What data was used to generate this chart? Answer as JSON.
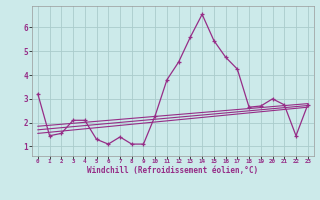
{
  "x": [
    0,
    1,
    2,
    3,
    4,
    5,
    6,
    7,
    8,
    9,
    10,
    11,
    12,
    13,
    14,
    15,
    16,
    17,
    18,
    19,
    20,
    21,
    22,
    23
  ],
  "line1": [
    3.2,
    1.45,
    1.55,
    2.1,
    2.1,
    1.3,
    1.1,
    1.4,
    1.1,
    1.1,
    2.3,
    3.8,
    4.55,
    5.6,
    6.55,
    5.45,
    4.75,
    4.25,
    2.65,
    2.7,
    3.0,
    2.75,
    1.45,
    2.75
  ],
  "regression_lines": [
    {
      "start_x": 0,
      "start_y": 1.55,
      "end_x": 23,
      "end_y": 2.65
    },
    {
      "start_x": 0,
      "start_y": 1.7,
      "end_x": 23,
      "end_y": 2.72
    },
    {
      "start_x": 0,
      "start_y": 1.85,
      "end_x": 23,
      "end_y": 2.8
    }
  ],
  "color": "#962d87",
  "background_color": "#cceaea",
  "grid_color": "#aacccc",
  "xlabel": "Windchill (Refroidissement éolien,°C)",
  "ylim": [
    0.6,
    6.9
  ],
  "xlim": [
    -0.5,
    23.5
  ],
  "yticks": [
    1,
    2,
    3,
    4,
    5,
    6
  ],
  "xticks": [
    0,
    1,
    2,
    3,
    4,
    5,
    6,
    7,
    8,
    9,
    10,
    11,
    12,
    13,
    14,
    15,
    16,
    17,
    18,
    19,
    20,
    21,
    22,
    23
  ],
  "xlabel_fontsize": 5.5,
  "xtick_fontsize": 4.2,
  "ytick_fontsize": 5.5
}
